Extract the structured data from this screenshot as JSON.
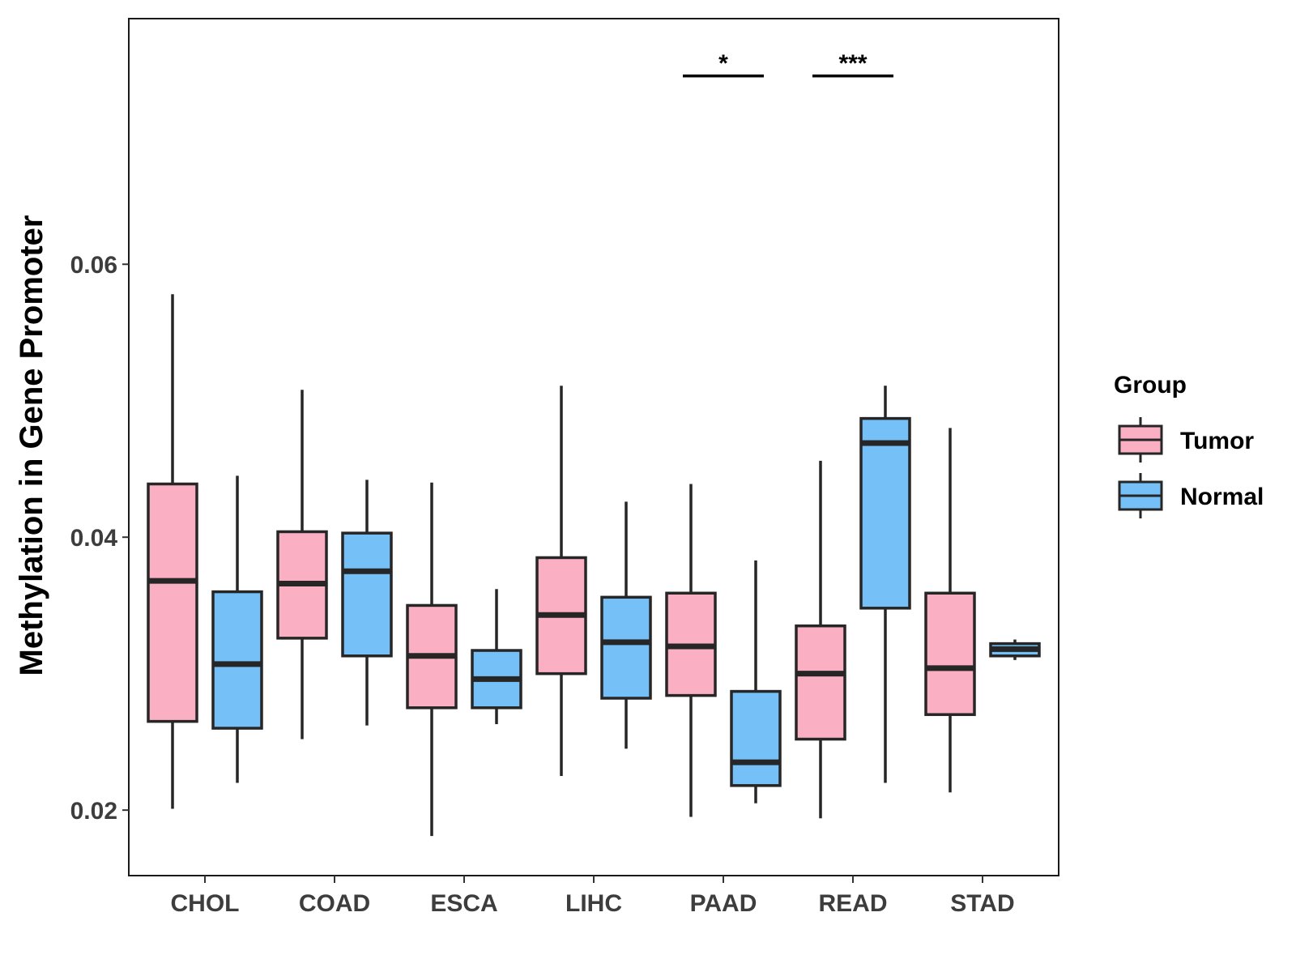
{
  "chart_data": {
    "type": "boxplot",
    "title": "",
    "xlabel": "",
    "ylabel": "Methylation in Gene Promoter",
    "ylim": [
      0.0152,
      0.078
    ],
    "yticks": [
      0.02,
      0.04,
      0.06
    ],
    "ytick_labels": [
      "0.02",
      "0.04",
      "0.06"
    ],
    "categories": [
      "CHOL",
      "COAD",
      "ESCA",
      "LIHC",
      "PAAD",
      "READ",
      "STAD"
    ],
    "legend": {
      "title": "Group",
      "position": "right",
      "entries": [
        {
          "name": "Tumor",
          "color": "#FBAFC3"
        },
        {
          "name": "Normal",
          "color": "#74C0F7"
        }
      ]
    },
    "series": [
      {
        "name": "Tumor",
        "color": "#FBAFC3",
        "boxes": [
          {
            "category": "CHOL",
            "min": 0.0201,
            "q1": 0.0265,
            "median": 0.0368,
            "q3": 0.0439,
            "max": 0.0578
          },
          {
            "category": "COAD",
            "min": 0.0252,
            "q1": 0.0326,
            "median": 0.0366,
            "q3": 0.0404,
            "max": 0.0508
          },
          {
            "category": "ESCA",
            "min": 0.0181,
            "q1": 0.0275,
            "median": 0.0313,
            "q3": 0.035,
            "max": 0.044
          },
          {
            "category": "LIHC",
            "min": 0.0225,
            "q1": 0.03,
            "median": 0.0343,
            "q3": 0.0385,
            "max": 0.0511
          },
          {
            "category": "PAAD",
            "min": 0.0195,
            "q1": 0.0284,
            "median": 0.032,
            "q3": 0.0359,
            "max": 0.0439
          },
          {
            "category": "READ",
            "min": 0.0194,
            "q1": 0.0252,
            "median": 0.03,
            "q3": 0.0335,
            "max": 0.0456
          },
          {
            "category": "STAD",
            "min": 0.0213,
            "q1": 0.027,
            "median": 0.0304,
            "q3": 0.0359,
            "max": 0.048
          }
        ]
      },
      {
        "name": "Normal",
        "color": "#74C0F7",
        "boxes": [
          {
            "category": "CHOL",
            "min": 0.022,
            "q1": 0.026,
            "median": 0.0307,
            "q3": 0.036,
            "max": 0.0445
          },
          {
            "category": "COAD",
            "min": 0.0262,
            "q1": 0.0313,
            "median": 0.0375,
            "q3": 0.0403,
            "max": 0.0442
          },
          {
            "category": "ESCA",
            "min": 0.0263,
            "q1": 0.0275,
            "median": 0.0296,
            "q3": 0.0317,
            "max": 0.0362
          },
          {
            "category": "LIHC",
            "min": 0.0245,
            "q1": 0.0282,
            "median": 0.0323,
            "q3": 0.0356,
            "max": 0.0426
          },
          {
            "category": "PAAD",
            "min": 0.0205,
            "q1": 0.0218,
            "median": 0.0235,
            "q3": 0.0287,
            "max": 0.0383
          },
          {
            "category": "READ",
            "min": 0.022,
            "q1": 0.0348,
            "median": 0.0469,
            "q3": 0.0487,
            "max": 0.0511
          },
          {
            "category": "STAD",
            "min": 0.031,
            "q1": 0.0313,
            "median": 0.0318,
            "q3": 0.0322,
            "max": 0.0325
          }
        ]
      }
    ],
    "annotations": [
      {
        "category": "PAAD",
        "label": "*",
        "y": 0.0738
      },
      {
        "category": "READ",
        "label": "***",
        "y": 0.0738
      }
    ]
  }
}
